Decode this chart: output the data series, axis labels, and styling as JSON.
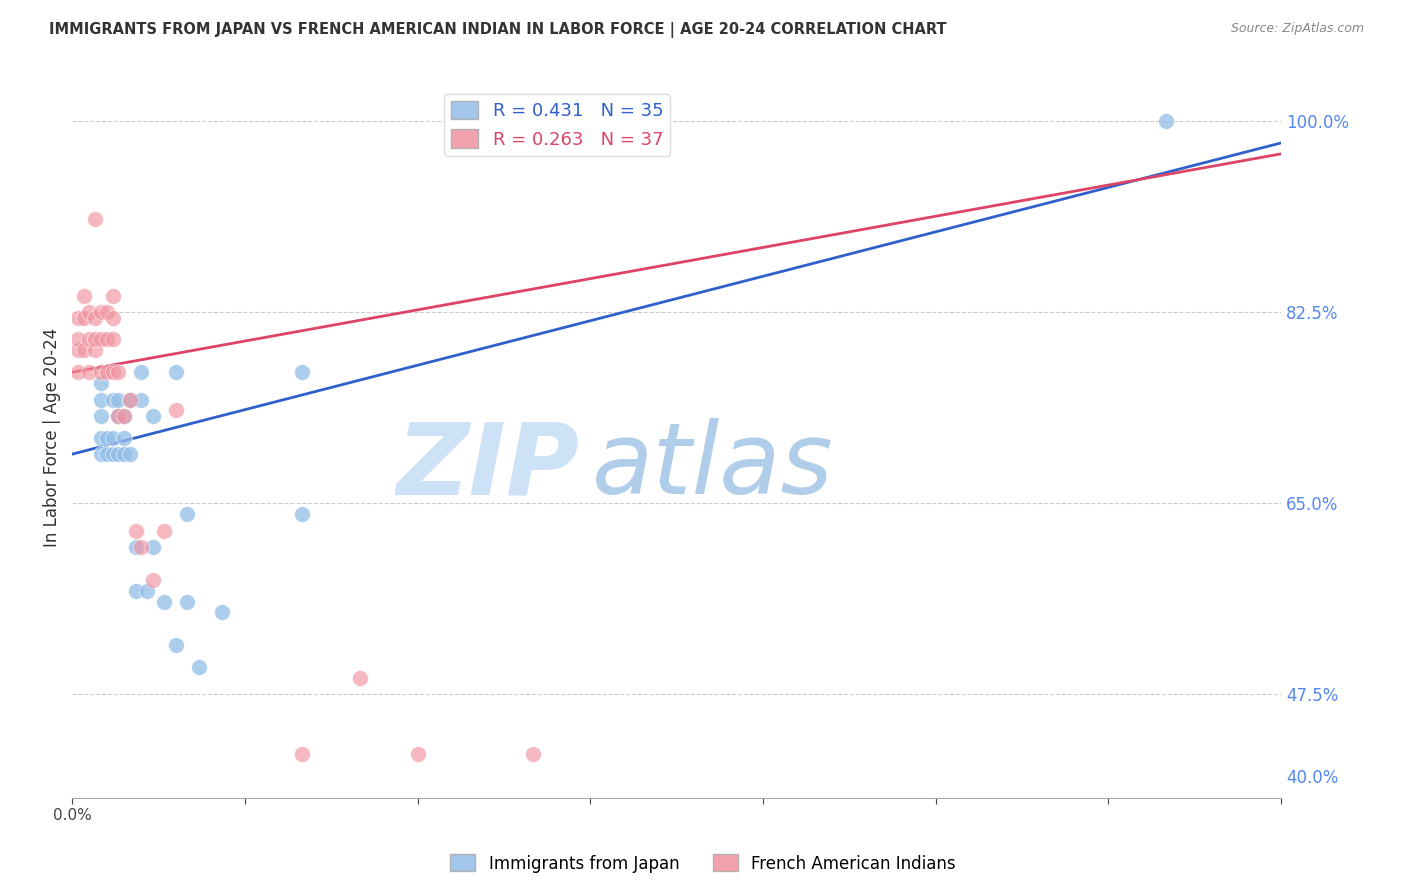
{
  "title": "IMMIGRANTS FROM JAPAN VS FRENCH AMERICAN INDIAN IN LABOR FORCE | AGE 20-24 CORRELATION CHART",
  "source": "Source: ZipAtlas.com",
  "ylabel": "In Labor Force | Age 20-24",
  "legend_blue_r": "R = 0.431",
  "legend_blue_n": "N = 35",
  "legend_pink_r": "R = 0.263",
  "legend_pink_n": "N = 37",
  "watermark_zip": "ZIP",
  "watermark_atlas": "atlas",
  "right_ytick_labels": [
    "100.0%",
    "82.5%",
    "65.0%",
    "47.5%",
    "40.0%"
  ],
  "right_ytick_vals": [
    1.0,
    0.825,
    0.65,
    0.475,
    0.4
  ],
  "xlim": [
    0.0,
    0.0105
  ],
  "ylim": [
    0.38,
    1.04
  ],
  "blue_color": "#92bde8",
  "pink_color": "#f0929f",
  "blue_line_color": "#3060cc",
  "pink_line_color": "#dd4466",
  "blue_line_x": [
    0.0,
    0.0105
  ],
  "blue_line_y": [
    0.695,
    0.98
  ],
  "pink_line_x": [
    0.0,
    0.0105
  ],
  "pink_line_y": [
    0.77,
    0.97
  ],
  "blue_x": [
    0.00025,
    0.00025,
    0.00025,
    0.00025,
    0.00025,
    0.0003,
    0.0003,
    0.00035,
    0.00035,
    0.00035,
    0.0004,
    0.0004,
    0.0004,
    0.00045,
    0.00045,
    0.00045,
    0.0005,
    0.0005,
    0.00055,
    0.00055,
    0.0006,
    0.0006,
    0.00065,
    0.0007,
    0.0007,
    0.0008,
    0.0009,
    0.0009,
    0.001,
    0.001,
    0.0011,
    0.0013,
    0.002,
    0.002,
    0.0095
  ],
  "blue_y": [
    0.695,
    0.71,
    0.73,
    0.745,
    0.76,
    0.695,
    0.71,
    0.695,
    0.71,
    0.745,
    0.695,
    0.73,
    0.745,
    0.695,
    0.71,
    0.73,
    0.695,
    0.745,
    0.57,
    0.61,
    0.745,
    0.77,
    0.57,
    0.61,
    0.73,
    0.56,
    0.52,
    0.77,
    0.56,
    0.64,
    0.5,
    0.55,
    0.64,
    0.77,
    1.0
  ],
  "pink_x": [
    5e-05,
    5e-05,
    5e-05,
    5e-05,
    0.0001,
    0.0001,
    0.0001,
    0.00015,
    0.00015,
    0.00015,
    0.0002,
    0.0002,
    0.0002,
    0.0002,
    0.00025,
    0.00025,
    0.00025,
    0.0003,
    0.0003,
    0.0003,
    0.00035,
    0.00035,
    0.00035,
    0.00035,
    0.0004,
    0.0004,
    0.00045,
    0.0005,
    0.00055,
    0.0006,
    0.0007,
    0.0008,
    0.0009,
    0.002,
    0.0025,
    0.003,
    0.004
  ],
  "pink_y": [
    0.77,
    0.79,
    0.8,
    0.82,
    0.79,
    0.82,
    0.84,
    0.77,
    0.8,
    0.825,
    0.79,
    0.8,
    0.82,
    0.91,
    0.77,
    0.8,
    0.825,
    0.77,
    0.8,
    0.825,
    0.77,
    0.8,
    0.82,
    0.84,
    0.73,
    0.77,
    0.73,
    0.745,
    0.625,
    0.61,
    0.58,
    0.625,
    0.735,
    0.42,
    0.49,
    0.42,
    0.42
  ]
}
